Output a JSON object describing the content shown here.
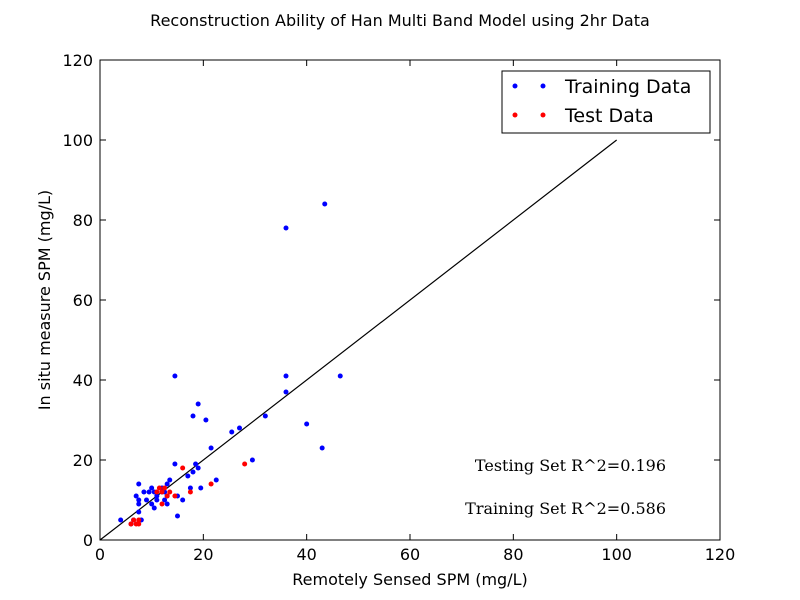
{
  "chart_data": {
    "type": "scatter",
    "title": "Reconstruction Ability of Han Multi Band Model using 2hr Data",
    "xlabel": "Remotely Sensed SPM (mg/L)",
    "ylabel": "In situ measure SPM (mg/L)",
    "xlim": [
      0,
      120
    ],
    "ylim": [
      0,
      120
    ],
    "xticks": [
      0,
      20,
      40,
      60,
      80,
      100,
      120
    ],
    "yticks": [
      0,
      20,
      40,
      60,
      80,
      100,
      120
    ],
    "grid": false,
    "legend_position": "top-right",
    "reference_line": {
      "from": [
        0,
        0
      ],
      "to": [
        100,
        100
      ]
    },
    "series": [
      {
        "name": "Training Data",
        "color": "#0000ff",
        "points": [
          [
            4,
            5
          ],
          [
            6,
            4
          ],
          [
            6.5,
            5
          ],
          [
            7,
            11
          ],
          [
            7.5,
            10
          ],
          [
            7.5,
            14
          ],
          [
            7.5,
            9
          ],
          [
            7.5,
            7
          ],
          [
            8,
            5
          ],
          [
            8.5,
            12
          ],
          [
            9,
            10
          ],
          [
            9.5,
            12
          ],
          [
            10,
            9
          ],
          [
            10,
            13
          ],
          [
            10.5,
            12
          ],
          [
            10.5,
            8
          ],
          [
            11,
            11
          ],
          [
            11,
            10
          ],
          [
            12,
            12
          ],
          [
            12,
            13
          ],
          [
            12.5,
            10
          ],
          [
            12.5,
            12
          ],
          [
            13,
            11
          ],
          [
            13,
            14
          ],
          [
            13,
            9
          ],
          [
            13.5,
            15
          ],
          [
            14.5,
            19
          ],
          [
            14.5,
            41
          ],
          [
            15,
            11
          ],
          [
            15,
            6
          ],
          [
            16,
            10
          ],
          [
            17,
            16
          ],
          [
            17.5,
            13
          ],
          [
            18,
            31
          ],
          [
            18,
            17
          ],
          [
            18.5,
            19
          ],
          [
            19,
            34
          ],
          [
            19,
            18
          ],
          [
            19.5,
            13
          ],
          [
            20.5,
            30
          ],
          [
            21.5,
            23
          ],
          [
            22.5,
            15
          ],
          [
            25.5,
            27
          ],
          [
            27,
            28
          ],
          [
            29.5,
            20
          ],
          [
            32,
            31
          ],
          [
            36,
            78
          ],
          [
            36,
            41
          ],
          [
            36,
            37
          ],
          [
            40,
            29
          ],
          [
            43,
            23
          ],
          [
            43.5,
            84
          ],
          [
            46.5,
            41
          ]
        ]
      },
      {
        "name": "Test Data",
        "color": "#ff0000",
        "points": [
          [
            6,
            4
          ],
          [
            6.5,
            5
          ],
          [
            7,
            4
          ],
          [
            7.5,
            4
          ],
          [
            7.5,
            5
          ],
          [
            11,
            12
          ],
          [
            11.5,
            13
          ],
          [
            12,
            12
          ],
          [
            12,
            9
          ],
          [
            12.5,
            13
          ],
          [
            13,
            11
          ],
          [
            13.5,
            12
          ],
          [
            14.5,
            11
          ],
          [
            16,
            18
          ],
          [
            17.5,
            12
          ],
          [
            21.5,
            14
          ],
          [
            28,
            19
          ]
        ]
      }
    ],
    "annotations": [
      {
        "text": "Testing Set R^2=0.196"
      },
      {
        "text": "Training Set R^2=0.586"
      }
    ]
  }
}
